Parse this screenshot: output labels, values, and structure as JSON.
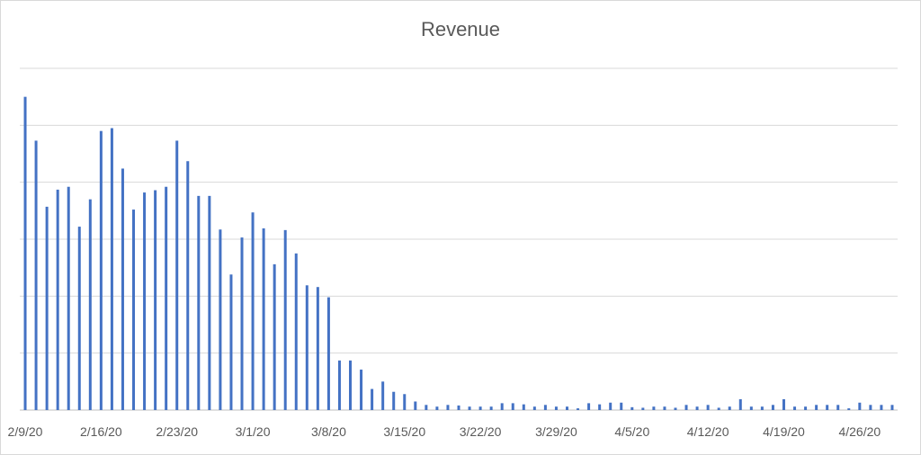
{
  "chart_data": {
    "type": "bar",
    "title": "Revenue",
    "xlabel": "",
    "ylabel": "",
    "ylim": [
      0,
      6
    ],
    "grid": true,
    "legend": "none",
    "bar_color": "#4472c4",
    "tick_labels": [
      "2/9/20",
      "2/16/20",
      "2/23/20",
      "3/1/20",
      "3/8/20",
      "3/15/20",
      "3/22/20",
      "3/29/20",
      "4/5/20",
      "4/12/20",
      "4/19/20",
      "4/26/20"
    ],
    "dates": [
      "2/9/20",
      "2/10/20",
      "2/11/20",
      "2/12/20",
      "2/13/20",
      "2/14/20",
      "2/15/20",
      "2/16/20",
      "2/17/20",
      "2/18/20",
      "2/19/20",
      "2/20/20",
      "2/21/20",
      "2/22/20",
      "2/23/20",
      "2/24/20",
      "2/25/20",
      "2/26/20",
      "2/27/20",
      "2/28/20",
      "2/29/20",
      "3/1/20",
      "3/2/20",
      "3/3/20",
      "3/4/20",
      "3/5/20",
      "3/6/20",
      "3/7/20",
      "3/8/20",
      "3/9/20",
      "3/10/20",
      "3/11/20",
      "3/12/20",
      "3/13/20",
      "3/14/20",
      "3/15/20",
      "3/16/20",
      "3/17/20",
      "3/18/20",
      "3/19/20",
      "3/20/20",
      "3/21/20",
      "3/22/20",
      "3/23/20",
      "3/24/20",
      "3/25/20",
      "3/26/20",
      "3/27/20",
      "3/28/20",
      "3/29/20",
      "3/30/20",
      "3/31/20",
      "4/1/20",
      "4/2/20",
      "4/3/20",
      "4/4/20",
      "4/5/20",
      "4/6/20",
      "4/7/20",
      "4/8/20",
      "4/9/20",
      "4/10/20",
      "4/11/20",
      "4/12/20",
      "4/13/20",
      "4/14/20",
      "4/15/20",
      "4/16/20",
      "4/17/20",
      "4/18/20",
      "4/19/20",
      "4/20/20",
      "4/21/20",
      "4/22/20",
      "4/23/20",
      "4/24/20",
      "4/25/20",
      "4/26/20",
      "4/27/20",
      "4/28/20",
      "4/29/20"
    ],
    "values": [
      5.5,
      4.73,
      3.57,
      3.87,
      3.92,
      3.22,
      3.7,
      4.9,
      4.95,
      4.24,
      3.52,
      3.82,
      3.86,
      3.92,
      4.73,
      4.37,
      3.76,
      3.76,
      3.17,
      2.38,
      3.03,
      3.47,
      3.19,
      2.56,
      3.16,
      2.75,
      2.19,
      2.16,
      1.98,
      0.87,
      0.87,
      0.71,
      0.37,
      0.5,
      0.32,
      0.28,
      0.15,
      0.09,
      0.06,
      0.09,
      0.08,
      0.06,
      0.06,
      0.06,
      0.12,
      0.12,
      0.1,
      0.06,
      0.09,
      0.06,
      0.06,
      0.03,
      0.12,
      0.1,
      0.13,
      0.13,
      0.05,
      0.04,
      0.06,
      0.06,
      0.04,
      0.09,
      0.06,
      0.09,
      0.04,
      0.06,
      0.19,
      0.06,
      0.06,
      0.09,
      0.19,
      0.06,
      0.06,
      0.09,
      0.09,
      0.09,
      0.03,
      0.13,
      0.09,
      0.09,
      0.09
    ]
  }
}
